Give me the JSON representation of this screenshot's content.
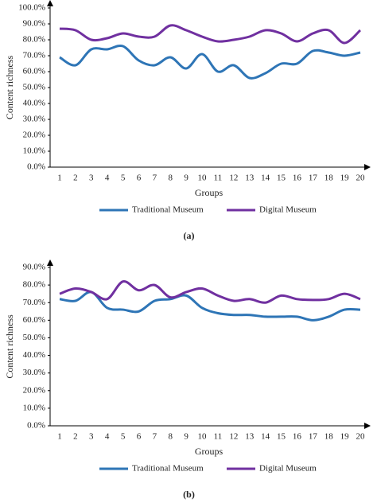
{
  "chart_data": [
    {
      "type": "line",
      "caption": "(a)",
      "x_label": "Groups",
      "y_label": "Content richness",
      "categories": [
        "1",
        "2",
        "3",
        "4",
        "5",
        "6",
        "7",
        "8",
        "9",
        "10",
        "11",
        "12",
        "13",
        "14",
        "15",
        "16",
        "17",
        "18",
        "19",
        "20"
      ],
      "series": [
        {
          "name": "Traditional Museum",
          "color": "#2e75b6",
          "values": [
            69,
            64,
            74,
            74,
            76,
            67,
            64,
            69,
            62,
            71,
            60,
            64,
            56,
            59,
            65,
            65,
            73,
            72,
            70,
            72
          ]
        },
        {
          "name": "Digital Museum",
          "color": "#7030a0",
          "values": [
            87,
            86,
            80,
            81,
            84,
            82,
            82,
            89,
            86,
            82,
            79,
            80,
            82,
            86,
            84,
            79,
            84,
            86,
            78,
            86
          ]
        }
      ],
      "ylim": [
        0,
        100
      ],
      "yticks": [
        {
          "value": 0,
          "label": "0.0%"
        },
        {
          "value": 10,
          "label": "10.0%"
        },
        {
          "value": 20,
          "label": "20.0%"
        },
        {
          "value": 30,
          "label": "30.0%"
        },
        {
          "value": 40,
          "label": "40.0%"
        },
        {
          "value": 50,
          "label": "50.0%"
        },
        {
          "value": 60,
          "label": "60.0%"
        },
        {
          "value": 70,
          "label": "70.0%"
        },
        {
          "value": 80,
          "label": "80.0%"
        },
        {
          "value": 90,
          "label": "90.0%"
        },
        {
          "value": 100,
          "label": "100.0%"
        }
      ]
    },
    {
      "type": "line",
      "caption": "(b)",
      "x_label": "Groups",
      "y_label": "Content richness",
      "categories": [
        "1",
        "2",
        "3",
        "4",
        "5",
        "6",
        "7",
        "8",
        "9",
        "10",
        "11",
        "12",
        "13",
        "14",
        "15",
        "16",
        "17",
        "18",
        "19",
        "20"
      ],
      "series": [
        {
          "name": "Traditional Museum",
          "color": "#2e75b6",
          "values": [
            72,
            71,
            76,
            67,
            66,
            65,
            71,
            72,
            74,
            67,
            64,
            63,
            63,
            62,
            62,
            62,
            60,
            62,
            66,
            66
          ]
        },
        {
          "name": "Digital Museum",
          "color": "#7030a0",
          "values": [
            75,
            78,
            76,
            72,
            82,
            77,
            80,
            73,
            76,
            78,
            74,
            71,
            72,
            70,
            74,
            72,
            71.5,
            72,
            75,
            72
          ]
        }
      ],
      "ylim": [
        0,
        90
      ],
      "yticks": [
        {
          "value": 0,
          "label": "0.0%"
        },
        {
          "value": 10,
          "label": "10.0%"
        },
        {
          "value": 20,
          "label": "20.0%"
        },
        {
          "value": 30,
          "label": "30.0%"
        },
        {
          "value": 40,
          "label": "40.0%"
        },
        {
          "value": 50,
          "label": "50.0%"
        },
        {
          "value": 60,
          "label": "60.0%"
        },
        {
          "value": 70,
          "label": "70.0%"
        },
        {
          "value": 80,
          "label": "80.0%"
        },
        {
          "value": 90,
          "label": "90.0%"
        }
      ]
    }
  ]
}
